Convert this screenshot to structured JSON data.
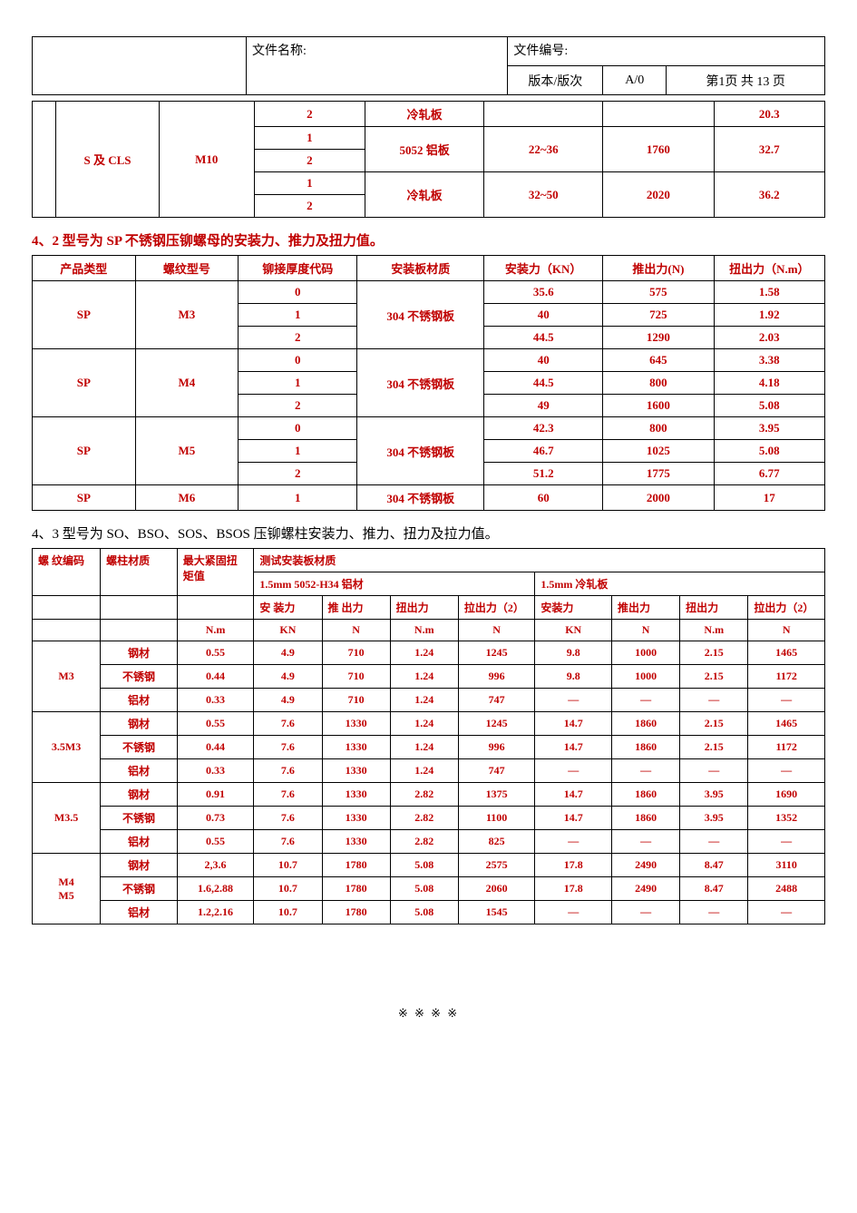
{
  "colors": {
    "red": "#c00000",
    "text": "#000000",
    "border": "#000000",
    "background": "#ffffff"
  },
  "typography": {
    "body_fontsize_pt": 10,
    "section_title_fontsize_pt": 11,
    "header_fontsize_pt": 10.5,
    "font_family": "SimSun / Times New Roman"
  },
  "header": {
    "doc_name_label": "文件名称:",
    "doc_no_label": "文件编号:",
    "version_label": "版本/版次",
    "version_value": "A/0",
    "page_info": "第1页  共 13 页"
  },
  "table1": {
    "note": "continuation rows",
    "rows": [
      {
        "type": "",
        "thread": "",
        "code": "2",
        "material": "冷轧板",
        "install": "",
        "push": "",
        "torque": "20.3"
      },
      {
        "type": "S 及 CLS",
        "thread": "M10",
        "code": "1",
        "material": "5052 铝板",
        "install": "22~36",
        "push": "1760",
        "torque": "32.7"
      },
      {
        "type": "",
        "thread": "",
        "code": "2",
        "material": "",
        "install": "",
        "push": "",
        "torque": ""
      },
      {
        "type": "",
        "thread": "",
        "code": "1",
        "material": "冷轧板",
        "install": "32~50",
        "push": "2020",
        "torque": "36.2"
      },
      {
        "type": "",
        "thread": "",
        "code": "2",
        "material": "",
        "install": "",
        "push": "",
        "torque": ""
      }
    ]
  },
  "section2_title": "4、2 型号为 SP 不锈钢压铆螺母的安装力、推力及扭力值。",
  "table2": {
    "headers": {
      "c1": "产品类型",
      "c2": "螺纹型号",
      "c3": "铆接厚度代码",
      "c4": "安装板材质",
      "c5": "安装力（KN）",
      "c6": "推出力(N)",
      "c7": "扭出力（N.m）"
    },
    "groups": [
      {
        "type": "SP",
        "thread": "M3",
        "material": "304 不锈钢板",
        "rows": [
          {
            "code": "0",
            "install": "35.6",
            "push": "575",
            "torque": "1.58"
          },
          {
            "code": "1",
            "install": "40",
            "push": "725",
            "torque": "1.92"
          },
          {
            "code": "2",
            "install": "44.5",
            "push": "1290",
            "torque": "2.03"
          }
        ]
      },
      {
        "type": "SP",
        "thread": "M4",
        "material": "304 不锈钢板",
        "rows": [
          {
            "code": "0",
            "install": "40",
            "push": "645",
            "torque": "3.38"
          },
          {
            "code": "1",
            "install": "44.5",
            "push": "800",
            "torque": "4.18"
          },
          {
            "code": "2",
            "install": "49",
            "push": "1600",
            "torque": "5.08"
          }
        ]
      },
      {
        "type": "SP",
        "thread": "M5",
        "material": "304 不锈钢板",
        "rows": [
          {
            "code": "0",
            "install": "42.3",
            "push": "800",
            "torque": "3.95"
          },
          {
            "code": "1",
            "install": "46.7",
            "push": "1025",
            "torque": "5.08"
          },
          {
            "code": "2",
            "install": "51.2",
            "push": "1775",
            "torque": "6.77"
          }
        ]
      },
      {
        "type": "SP",
        "thread": "M6",
        "material": "304 不锈钢板",
        "rows": [
          {
            "code": "1",
            "install": "60",
            "push": "2000",
            "torque": "17"
          }
        ]
      }
    ]
  },
  "section3_title": "4、3 型号为 SO、BSO、SOS、BSOS 压铆螺柱安装力、推力、扭力及拉力值。",
  "table3": {
    "head": {
      "c1": "螺 纹编码",
      "c2": "螺柱材质",
      "c3": "最大紧固扭矩值",
      "c4": "测试安装板材质",
      "sub_a_title": "1.5mm  5052-H34 铝材",
      "sub_b_title": "1.5mm    冷轧板",
      "sub_cols": {
        "a": "安 装力",
        "b": "推 出力",
        "c": "扭出力",
        "d": "拉出力（2）",
        "e": "安装力",
        "f": "推出力",
        "g": "扭出力",
        "h": "拉出力（2）"
      },
      "units": {
        "c3": "N.m",
        "a": "KN",
        "b": "N",
        "c": "N.m",
        "d": "N",
        "e": "KN",
        "f": "N",
        "g": "N.m",
        "h": "N"
      }
    },
    "groups": [
      {
        "code": "M3",
        "rows": [
          {
            "mat": "钢材",
            "max": "0.55",
            "a": "4.9",
            "b": "710",
            "c": "1.24",
            "d": "1245",
            "e": "9.8",
            "f": "1000",
            "g": "2.15",
            "h": "1465"
          },
          {
            "mat": "不锈钢",
            "max": "0.44",
            "a": "4.9",
            "b": "710",
            "c": "1.24",
            "d": "996",
            "e": "9.8",
            "f": "1000",
            "g": "2.15",
            "h": "1172"
          },
          {
            "mat": "铝材",
            "max": "0.33",
            "a": "4.9",
            "b": "710",
            "c": "1.24",
            "d": "747",
            "e": "—",
            "f": "—",
            "g": "—",
            "h": "—"
          }
        ]
      },
      {
        "code": "3.5M3",
        "rows": [
          {
            "mat": "钢材",
            "max": "0.55",
            "a": "7.6",
            "b": "1330",
            "c": "1.24",
            "d": "1245",
            "e": "14.7",
            "f": "1860",
            "g": "2.15",
            "h": "1465"
          },
          {
            "mat": "不锈钢",
            "max": "0.44",
            "a": "7.6",
            "b": "1330",
            "c": "1.24",
            "d": "996",
            "e": "14.7",
            "f": "1860",
            "g": "2.15",
            "h": "1172"
          },
          {
            "mat": "铝材",
            "max": "0.33",
            "a": "7.6",
            "b": "1330",
            "c": "1.24",
            "d": "747",
            "e": "—",
            "f": "—",
            "g": "—",
            "h": "—"
          }
        ]
      },
      {
        "code": "M3.5",
        "rows": [
          {
            "mat": "钢材",
            "max": "0.91",
            "a": "7.6",
            "b": "1330",
            "c": "2.82",
            "d": "1375",
            "e": "14.7",
            "f": "1860",
            "g": "3.95",
            "h": "1690"
          },
          {
            "mat": "不锈钢",
            "max": "0.73",
            "a": "7.6",
            "b": "1330",
            "c": "2.82",
            "d": "1100",
            "e": "14.7",
            "f": "1860",
            "g": "3.95",
            "h": "1352"
          },
          {
            "mat": "铝材",
            "max": "0.55",
            "a": "7.6",
            "b": "1330",
            "c": "2.82",
            "d": "825",
            "e": "—",
            "f": "—",
            "g": "—",
            "h": "—"
          }
        ]
      },
      {
        "code": "M4\nM5",
        "code_lines": [
          "M4",
          "M5"
        ],
        "rows": [
          {
            "mat": "钢材",
            "max": "2,3.6",
            "a": "10.7",
            "b": "1780",
            "c": "5.08",
            "d": "2575",
            "e": "17.8",
            "f": "2490",
            "g": "8.47",
            "h": "3110"
          },
          {
            "mat": "不锈钢",
            "max": "1.6,2.88",
            "a": "10.7",
            "b": "1780",
            "c": "5.08",
            "d": "2060",
            "e": "17.8",
            "f": "2490",
            "g": "8.47",
            "h": "2488"
          },
          {
            "mat": "铝材",
            "max": "1.2,2.16",
            "a": "10.7",
            "b": "1780",
            "c": "5.08",
            "d": "1545",
            "e": "—",
            "f": "—",
            "g": "—",
            "h": "—"
          }
        ]
      }
    ]
  },
  "footer": "※  ※ ※  ※"
}
